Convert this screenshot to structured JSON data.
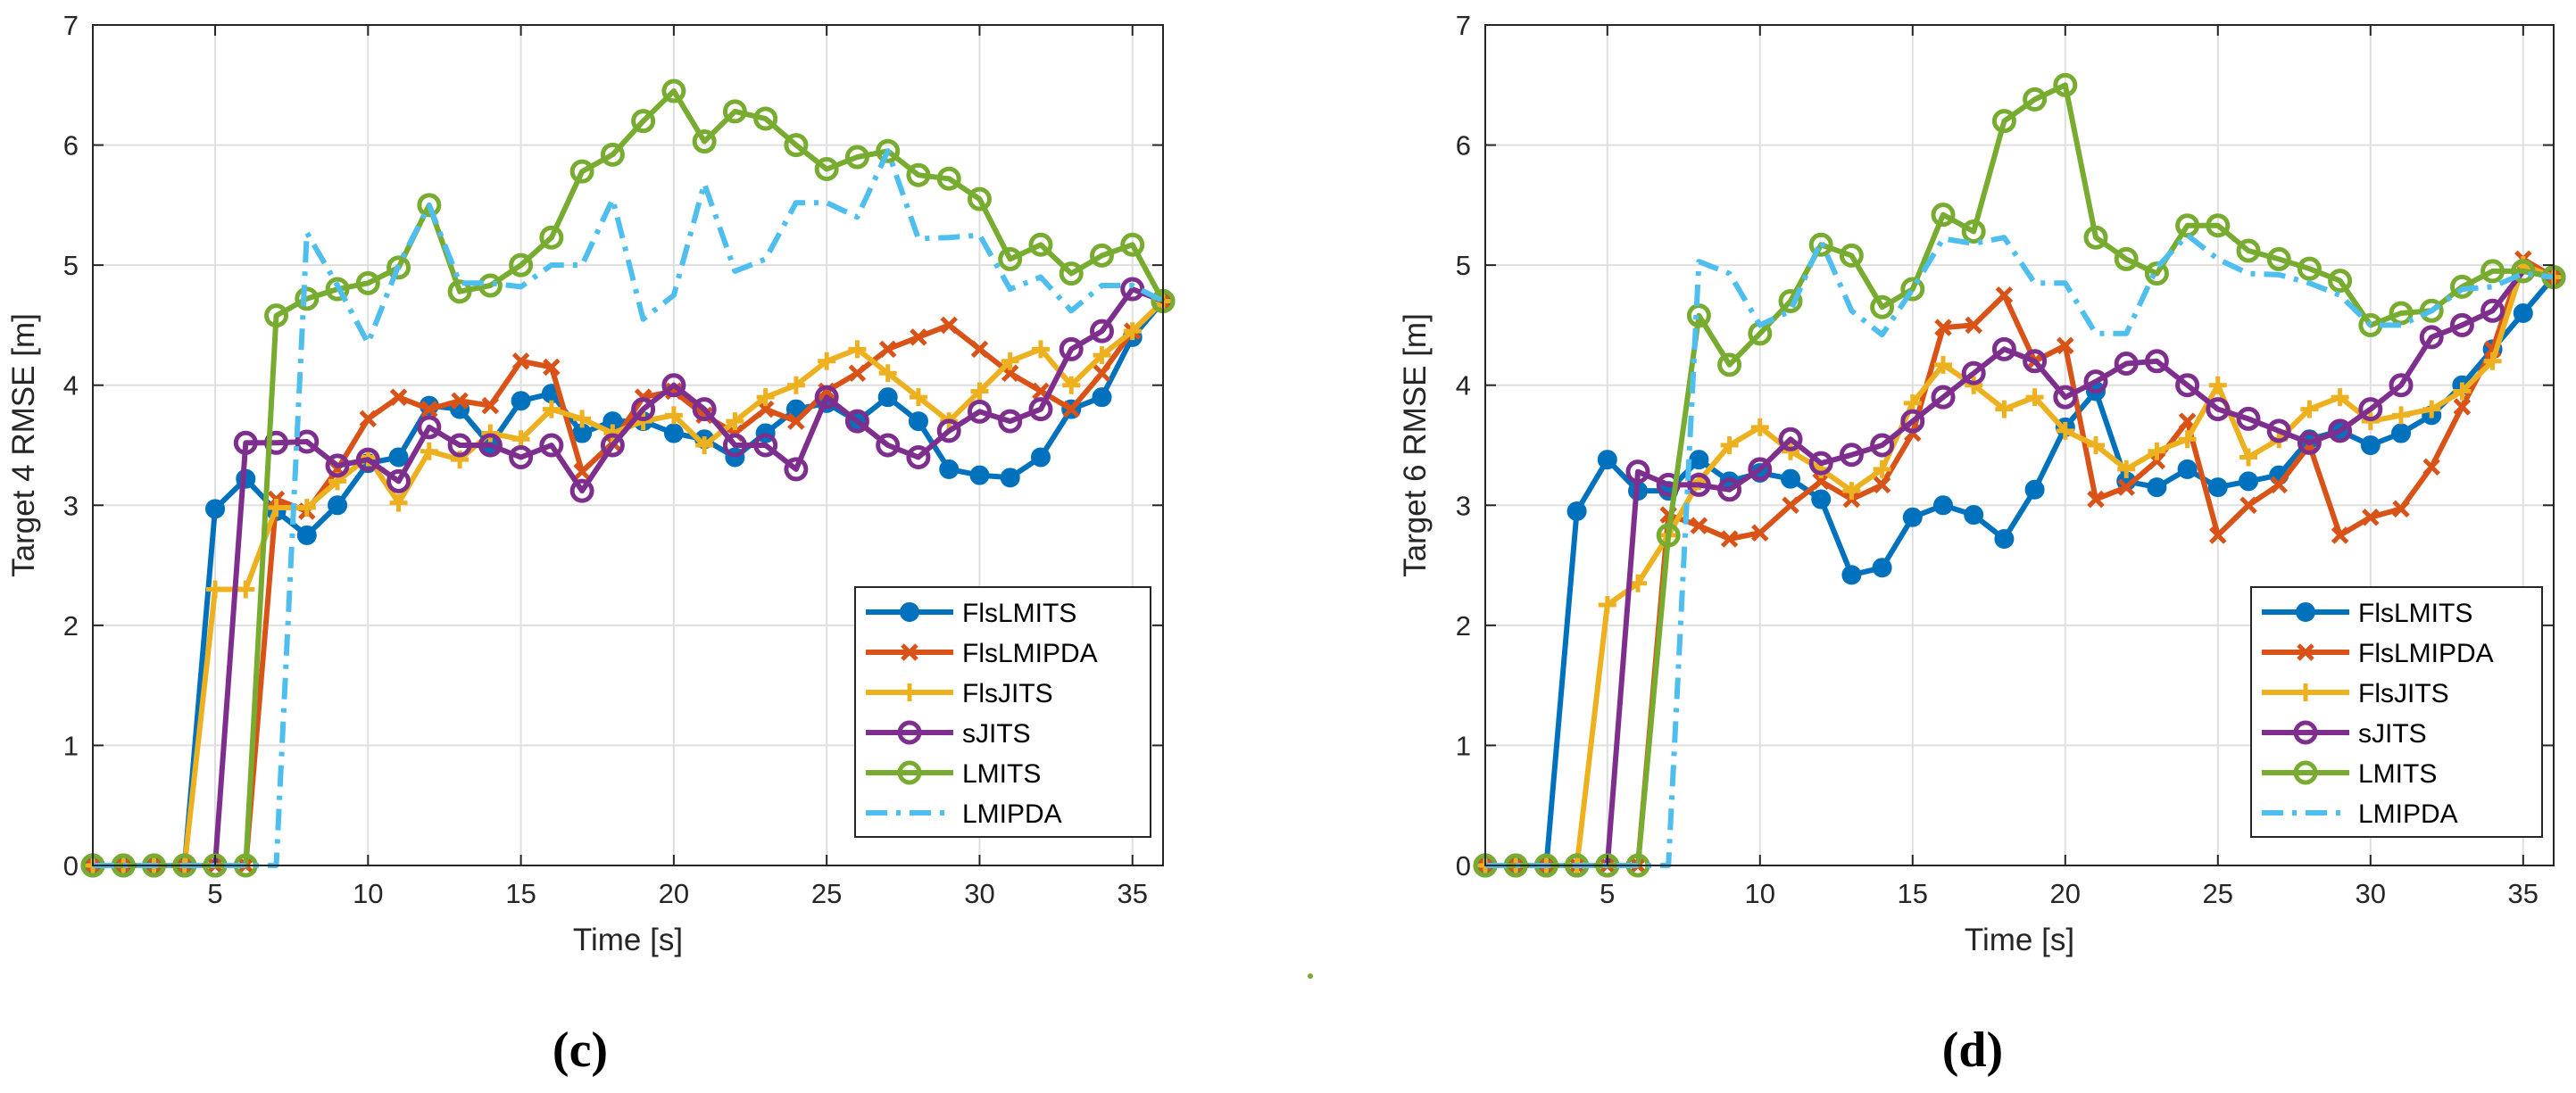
{
  "colors": {
    "FlsLMITS": "#0072BD",
    "FlsLMIPDA": "#D95319",
    "FlsJITS": "#EDB120",
    "sJITS": "#7E2F8E",
    "LMITS": "#77AC30",
    "LMIPDA": "#4DBEEE"
  },
  "chart_data": [
    {
      "type": "line",
      "panel_label": "(c)",
      "xlabel": "Time [s]",
      "ylabel": "Target 4 RMSE [m]",
      "xlim": [
        1,
        36
      ],
      "ylim": [
        0,
        7
      ],
      "xticks": [
        5,
        10,
        15,
        20,
        25,
        30,
        35
      ],
      "yticks": [
        0,
        1,
        2,
        3,
        4,
        5,
        6,
        7
      ],
      "grid": true,
      "legend_position": "bottom-right",
      "x": [
        1,
        2,
        3,
        4,
        5,
        6,
        7,
        8,
        9,
        10,
        11,
        12,
        13,
        14,
        15,
        16,
        17,
        18,
        19,
        20,
        21,
        22,
        23,
        24,
        25,
        26,
        27,
        28,
        29,
        30,
        31,
        32,
        33,
        34,
        35,
        36
      ],
      "series": [
        {
          "name": "FlsLMITS",
          "marker": "dot",
          "dash": "solid",
          "values": [
            0,
            0,
            0,
            0,
            2.97,
            3.22,
            2.95,
            2.75,
            3.0,
            3.35,
            3.4,
            3.83,
            3.8,
            3.5,
            3.87,
            3.93,
            3.6,
            3.7,
            3.7,
            3.6,
            3.55,
            3.4,
            3.6,
            3.8,
            3.85,
            3.7,
            3.9,
            3.7,
            3.3,
            3.25,
            3.23,
            3.4,
            3.8,
            3.9,
            4.4,
            4.7
          ]
        },
        {
          "name": "FlsLMIPDA",
          "marker": "cross",
          "dash": "solid",
          "values": [
            0,
            0,
            0,
            0,
            0,
            0,
            3.05,
            2.95,
            3.3,
            3.72,
            3.9,
            3.8,
            3.87,
            3.83,
            4.2,
            4.15,
            3.28,
            3.52,
            3.9,
            3.95,
            3.75,
            3.6,
            3.8,
            3.7,
            3.95,
            4.1,
            4.3,
            4.4,
            4.5,
            4.3,
            4.1,
            3.95,
            3.8,
            4.1,
            4.45,
            4.7
          ]
        },
        {
          "name": "FlsJITS",
          "marker": "plus",
          "dash": "solid",
          "values": [
            0,
            0,
            0,
            0,
            2.3,
            2.3,
            2.98,
            2.98,
            3.2,
            3.4,
            3.02,
            3.45,
            3.38,
            3.6,
            3.55,
            3.8,
            3.72,
            3.6,
            3.7,
            3.75,
            3.5,
            3.7,
            3.9,
            4.0,
            4.2,
            4.3,
            4.1,
            3.9,
            3.7,
            3.95,
            4.2,
            4.3,
            4.0,
            4.25,
            4.45,
            4.7
          ]
        },
        {
          "name": "sJITS",
          "marker": "circle",
          "dash": "solid",
          "values": [
            0,
            0,
            0,
            0,
            0,
            3.52,
            3.52,
            3.53,
            3.33,
            3.38,
            3.2,
            3.65,
            3.5,
            3.5,
            3.4,
            3.5,
            3.12,
            3.5,
            3.8,
            4.0,
            3.8,
            3.5,
            3.5,
            3.3,
            3.9,
            3.7,
            3.5,
            3.4,
            3.62,
            3.78,
            3.7,
            3.8,
            4.3,
            4.45,
            4.8,
            4.7
          ]
        },
        {
          "name": "LMITS",
          "marker": "circle",
          "dash": "solid",
          "values": [
            0,
            0,
            0,
            0,
            0,
            0,
            4.58,
            4.72,
            4.8,
            4.85,
            4.98,
            5.5,
            4.78,
            4.83,
            5.0,
            5.23,
            5.78,
            5.92,
            6.2,
            6.45,
            6.03,
            6.28,
            6.22,
            6.0,
            5.8,
            5.9,
            5.95,
            5.75,
            5.72,
            5.55,
            5.05,
            5.17,
            4.93,
            5.08,
            5.17,
            4.7
          ]
        },
        {
          "name": "LMIPDA",
          "marker": "none",
          "dash": "dashdot",
          "values": [
            0,
            0,
            0,
            0,
            0,
            0,
            0,
            5.27,
            4.83,
            4.35,
            5.0,
            5.5,
            4.85,
            4.85,
            4.82,
            5.0,
            5.0,
            5.55,
            4.55,
            4.75,
            5.68,
            4.95,
            5.05,
            5.52,
            5.52,
            5.4,
            5.95,
            5.22,
            5.23,
            5.25,
            4.8,
            4.9,
            4.62,
            4.83,
            4.83,
            4.7
          ]
        }
      ]
    },
    {
      "type": "line",
      "panel_label": "(d)",
      "xlabel": "Time [s]",
      "ylabel": "Target 6 RMSE [m]",
      "xlim": [
        1,
        36
      ],
      "ylim": [
        0,
        7
      ],
      "xticks": [
        5,
        10,
        15,
        20,
        25,
        30,
        35
      ],
      "yticks": [
        0,
        1,
        2,
        3,
        4,
        5,
        6,
        7
      ],
      "grid": true,
      "legend_position": "bottom-right",
      "x": [
        1,
        2,
        3,
        4,
        5,
        6,
        7,
        8,
        9,
        10,
        11,
        12,
        13,
        14,
        15,
        16,
        17,
        18,
        19,
        20,
        21,
        22,
        23,
        24,
        25,
        26,
        27,
        28,
        29,
        30,
        31,
        32,
        33,
        34,
        35,
        36
      ],
      "series": [
        {
          "name": "FlsLMITS",
          "marker": "dot",
          "dash": "solid",
          "values": [
            0,
            0,
            0,
            2.95,
            3.38,
            3.12,
            3.12,
            3.38,
            3.2,
            3.27,
            3.22,
            3.05,
            2.42,
            2.48,
            2.9,
            3.0,
            2.92,
            2.72,
            3.13,
            3.65,
            3.95,
            3.2,
            3.15,
            3.3,
            3.15,
            3.2,
            3.25,
            3.55,
            3.62,
            3.5,
            3.6,
            3.75,
            4.0,
            4.3,
            4.6,
            4.9
          ]
        },
        {
          "name": "FlsLMIPDA",
          "marker": "cross",
          "dash": "solid",
          "values": [
            0,
            0,
            0,
            0,
            0,
            0,
            2.92,
            2.83,
            2.72,
            2.77,
            3.0,
            3.2,
            3.05,
            3.17,
            3.6,
            4.48,
            4.5,
            4.75,
            4.2,
            4.33,
            3.05,
            3.15,
            3.37,
            3.7,
            2.75,
            3.0,
            3.17,
            3.5,
            2.75,
            2.9,
            2.97,
            3.32,
            3.82,
            4.3,
            5.05,
            4.9
          ]
        },
        {
          "name": "FlsJITS",
          "marker": "plus",
          "dash": "solid",
          "values": [
            0,
            0,
            0,
            0,
            2.17,
            2.35,
            2.75,
            3.2,
            3.5,
            3.65,
            3.45,
            3.3,
            3.12,
            3.3,
            3.85,
            4.17,
            4.0,
            3.8,
            3.9,
            3.62,
            3.5,
            3.3,
            3.45,
            3.55,
            4.0,
            3.4,
            3.55,
            3.8,
            3.9,
            3.7,
            3.75,
            3.8,
            3.95,
            4.2,
            5.0,
            4.9
          ]
        },
        {
          "name": "sJITS",
          "marker": "circle",
          "dash": "solid",
          "values": [
            0,
            0,
            0,
            0,
            0,
            3.28,
            3.17,
            3.17,
            3.13,
            3.3,
            3.55,
            3.35,
            3.42,
            3.5,
            3.7,
            3.9,
            4.1,
            4.3,
            4.2,
            3.9,
            4.03,
            4.18,
            4.2,
            4.0,
            3.8,
            3.72,
            3.62,
            3.52,
            3.62,
            3.8,
            4.0,
            4.4,
            4.5,
            4.62,
            4.95,
            4.9
          ]
        },
        {
          "name": "LMITS",
          "marker": "circle",
          "dash": "solid",
          "values": [
            0,
            0,
            0,
            0,
            0,
            0,
            2.75,
            4.58,
            4.17,
            4.43,
            4.7,
            5.17,
            5.08,
            4.65,
            4.8,
            5.42,
            5.28,
            6.2,
            6.38,
            6.5,
            5.23,
            5.05,
            4.93,
            5.33,
            5.33,
            5.12,
            5.05,
            4.97,
            4.87,
            4.5,
            4.6,
            4.62,
            4.82,
            4.95,
            4.95,
            4.9
          ]
        },
        {
          "name": "LMIPDA",
          "marker": "none",
          "dash": "dashdot",
          "values": [
            0,
            0,
            0,
            0,
            0,
            0,
            0,
            5.03,
            4.93,
            4.5,
            4.62,
            5.2,
            4.62,
            4.42,
            4.8,
            5.22,
            5.18,
            5.23,
            4.85,
            4.85,
            4.43,
            4.43,
            4.98,
            5.25,
            5.05,
            4.93,
            4.92,
            4.85,
            4.75,
            4.5,
            4.5,
            4.62,
            4.8,
            4.82,
            4.93,
            4.9
          ]
        }
      ]
    }
  ]
}
